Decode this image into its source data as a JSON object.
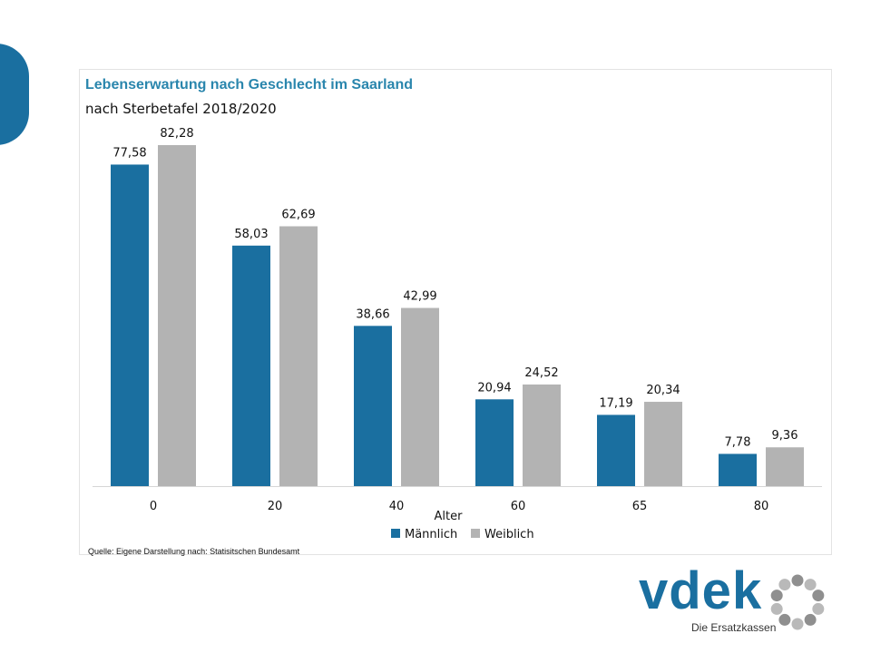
{
  "colors": {
    "male": "#1a6fa0",
    "female": "#b3b3b3",
    "accent": "#2a86ad"
  },
  "chart_data": {
    "type": "bar",
    "title": "Lebenserwartung nach Geschlecht im Saarland",
    "subtitle": "nach Sterbetafel 2018/2020",
    "xlabel": "Alter",
    "ylabel": "",
    "categories": [
      "0",
      "20",
      "40",
      "60",
      "65",
      "80"
    ],
    "series": [
      {
        "name": "Männlich",
        "values": [
          77.58,
          58.03,
          38.66,
          20.94,
          17.19,
          7.78
        ],
        "labels": [
          "77,58",
          "58,03",
          "38,66",
          "20,94",
          "17,19",
          "7,78"
        ]
      },
      {
        "name": "Weiblich",
        "values": [
          82.28,
          62.69,
          42.99,
          24.52,
          20.34,
          9.36
        ],
        "labels": [
          "82,28",
          "62,69",
          "42,99",
          "24,52",
          "20,34",
          "9,36"
        ]
      }
    ],
    "ylim": [
      0,
      90
    ],
    "grid": false,
    "legend": "bottom"
  },
  "source": "Quelle: Eigene Darstellung nach: Statisitschen Bundesamt",
  "logo": {
    "word": "vdek",
    "tagline": "Die Ersatzkassen"
  }
}
